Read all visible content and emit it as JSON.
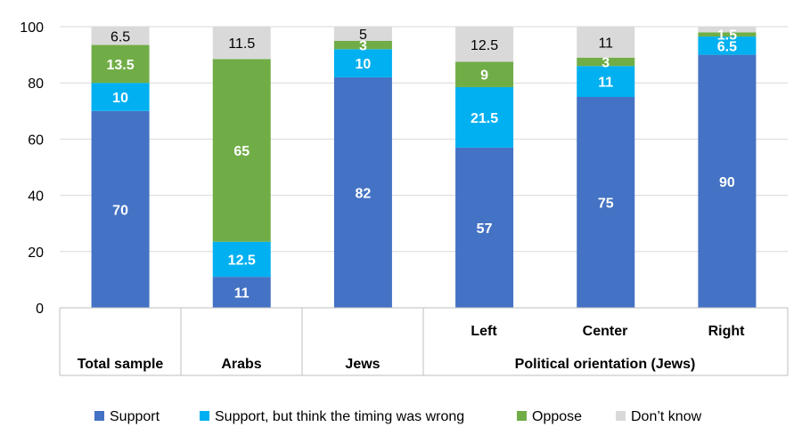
{
  "chart_data": {
    "type": "bar",
    "stacked": true,
    "categories": [
      "Total sample",
      "Arabs",
      "Jews",
      "Left",
      "Center",
      "Right"
    ],
    "group_labels": {
      "Total sample": "Total sample",
      "Arabs": "Arabs",
      "Jews": "Jews",
      "political": "Political orientation (Jews)"
    },
    "series": [
      {
        "name": "Support",
        "color": "#4472C4",
        "values": [
          70,
          11,
          82,
          57,
          75,
          90
        ],
        "labels": [
          "70",
          "11",
          "82",
          "57",
          "75",
          "90"
        ]
      },
      {
        "name": "Support, but think the timing was wrong",
        "color": "#00B0F0",
        "values": [
          10,
          12.5,
          10,
          21.5,
          11,
          6.5
        ],
        "labels": [
          "10",
          "12.5",
          "10",
          "21.5",
          "11",
          "6.5"
        ]
      },
      {
        "name": "Oppose",
        "color": "#70AD47",
        "values": [
          13.5,
          65,
          3,
          9,
          3,
          1.5
        ],
        "labels": [
          "13.5",
          "65",
          "3",
          "9",
          "3",
          "1.5"
        ]
      },
      {
        "name": "Don’t know",
        "color": "#D9D9D9",
        "values": [
          6.5,
          11.5,
          5,
          12.5,
          11,
          2
        ],
        "labels": [
          "6.5",
          "11.5",
          "5",
          "12.5",
          "11",
          ""
        ]
      }
    ],
    "ylim": [
      0,
      100
    ],
    "yticks": [
      0,
      20,
      40,
      60,
      80,
      100
    ],
    "grid": true,
    "legend": "bottom"
  }
}
